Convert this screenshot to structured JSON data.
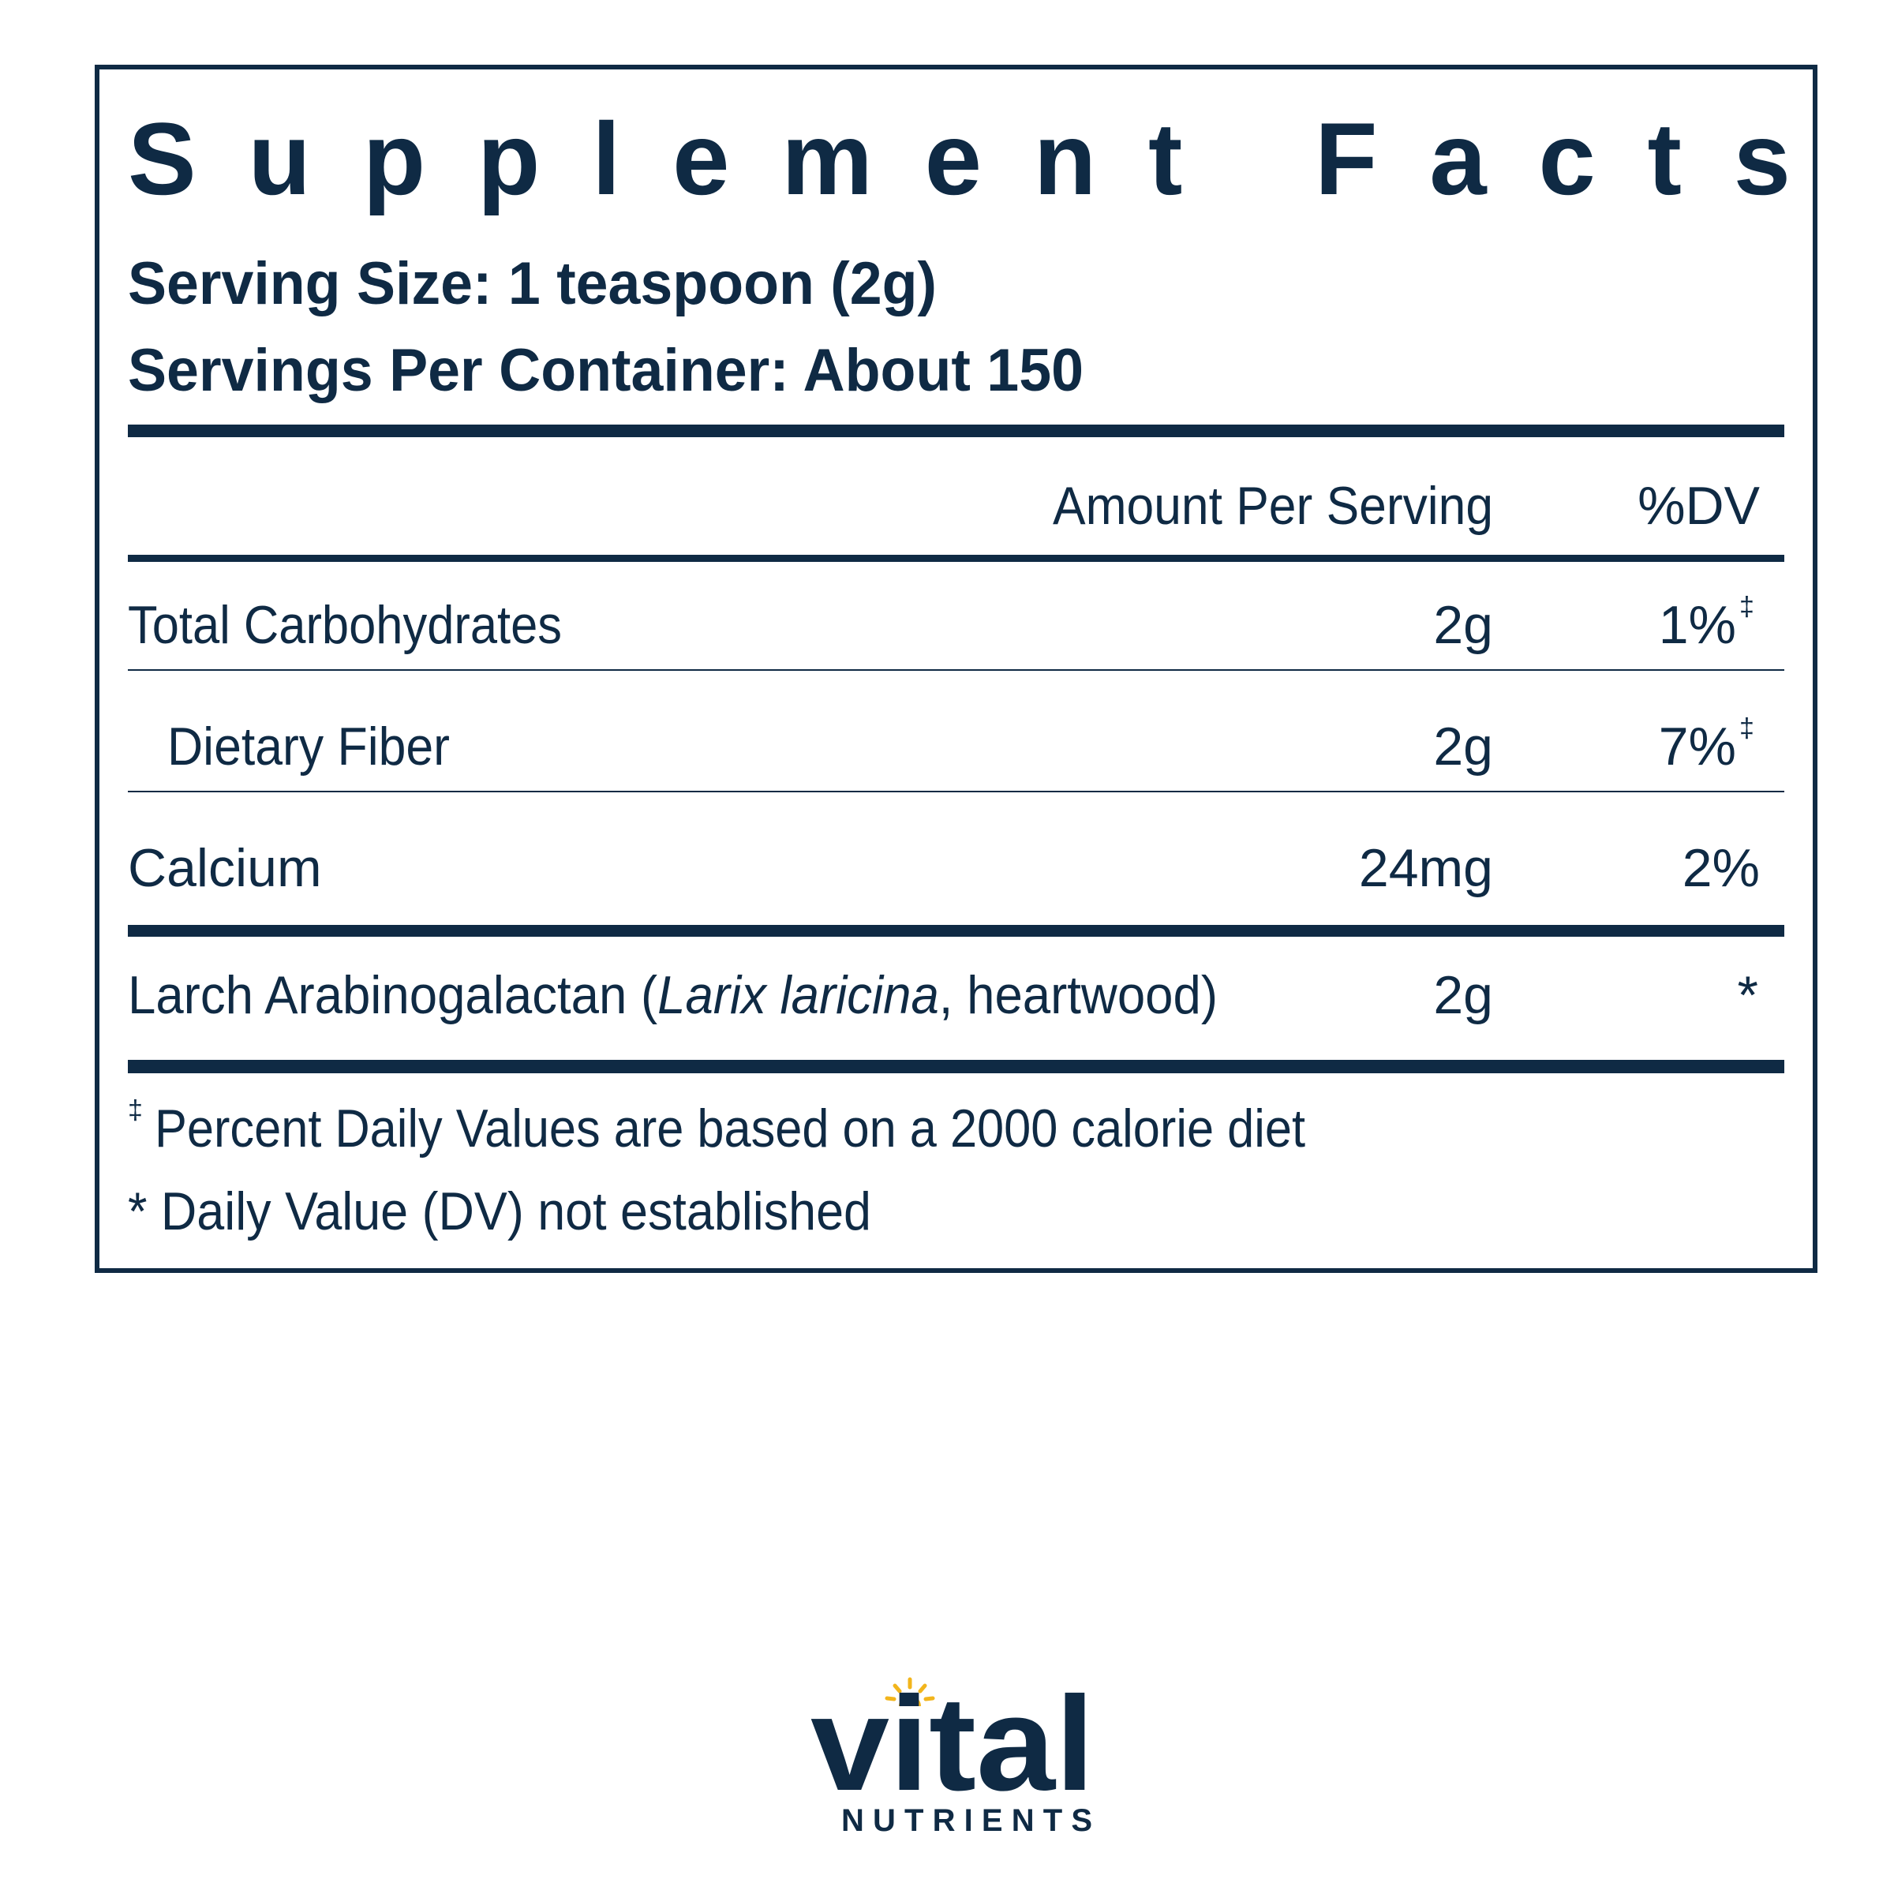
{
  "header": {
    "title": "Supplement Facts",
    "serving_size": "Serving Size: 1 teaspoon (2g)",
    "servings_per_container": "Servings Per Container: About 150"
  },
  "table": {
    "columns": [
      "Amount Per Serving",
      "%DV"
    ],
    "rows": [
      {
        "name": "Total Carbohydrates",
        "amount": "2g",
        "dv": "1%",
        "dv_mark": "‡"
      },
      {
        "name": "Dietary Fiber",
        "amount": "2g",
        "dv": "7%",
        "dv_mark": "‡"
      },
      {
        "name": "Calcium",
        "amount": "24mg",
        "dv": "2%"
      },
      {
        "name": [
          "Larch Arabinogalactan (",
          "Larix laricina",
          ", heartwood)"
        ],
        "amount": "2g",
        "dv": "*"
      }
    ]
  },
  "footnotes": [
    {
      "mark": "‡",
      "text": "Percent Daily Values are based on a 2000 calorie diet"
    },
    {
      "text": "* Daily Value (DV) not established"
    }
  ],
  "logo": {
    "brand": "vital",
    "tagline": "NUTRIENTS"
  }
}
